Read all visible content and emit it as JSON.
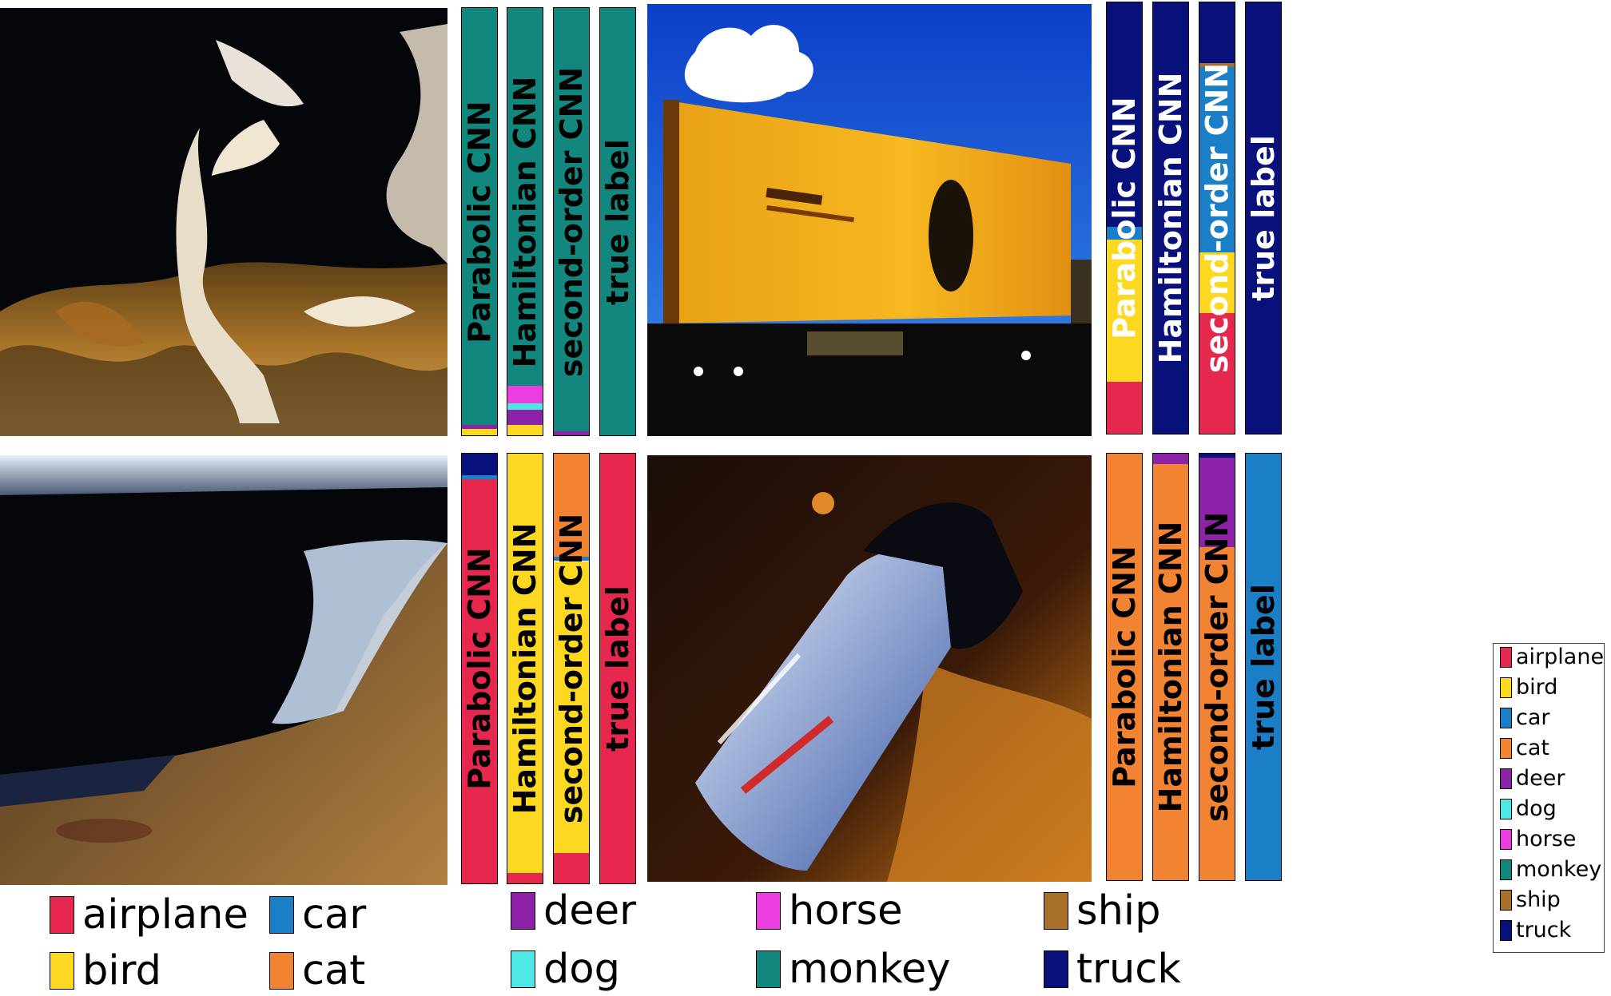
{
  "bar_labels": {
    "parabolic": "Parabolic CNN",
    "hamiltonian": "Hamiltonian CNN",
    "second_order": "second-order CNN",
    "true_label": "true label"
  },
  "classes": [
    {
      "name": "airplane",
      "color": "#e6284f"
    },
    {
      "name": "bird",
      "color": "#fcd920"
    },
    {
      "name": "car",
      "color": "#1a7fc6"
    },
    {
      "name": "cat",
      "color": "#f28332"
    },
    {
      "name": "deer",
      "color": "#8c22a8"
    },
    {
      "name": "dog",
      "color": "#4de8e6"
    },
    {
      "name": "horse",
      "color": "#ec3de0"
    },
    {
      "name": "monkey",
      "color": "#12877d"
    },
    {
      "name": "ship",
      "color": "#a9702c"
    },
    {
      "name": "truck",
      "color": "#07107b"
    }
  ],
  "panels": [
    {
      "image": "monkey-photo",
      "bars": [
        {
          "key": "parabolic",
          "probs": {
            "monkey": 0.975,
            "deer": 0.01,
            "bird": 0.015
          }
        },
        {
          "key": "hamiltonian",
          "probs": {
            "monkey": 0.885,
            "horse": 0.04,
            "dog": 0.015,
            "deer": 0.035,
            "bird": 0.025
          }
        },
        {
          "key": "second_order",
          "probs": {
            "monkey": 0.99,
            "deer": 0.01
          }
        },
        {
          "key": "true_label",
          "probs": {
            "monkey": 1.0
          }
        }
      ]
    },
    {
      "image": "truck-photo",
      "bars": [
        {
          "key": "parabolic",
          "probs": {
            "truck": 0.52,
            "car": 0.03,
            "bird": 0.33,
            "airplane": 0.12
          }
        },
        {
          "key": "hamiltonian",
          "probs": {
            "truck": 1.0
          }
        },
        {
          "key": "second_order",
          "probs": {
            "truck": 0.14,
            "ship": 0.01,
            "car": 0.43,
            "bird": 0.14,
            "airplane": 0.28
          }
        },
        {
          "key": "true_label",
          "probs": {
            "truck": 1.0
          }
        }
      ]
    },
    {
      "image": "airplane-photo",
      "bars": [
        {
          "key": "parabolic",
          "probs": {
            "truck": 0.05,
            "car": 0.01,
            "airplane": 0.94
          }
        },
        {
          "key": "hamiltonian",
          "probs": {
            "bird": 0.975,
            "airplane": 0.025
          }
        },
        {
          "key": "second_order",
          "probs": {
            "cat": 0.24,
            "car": 0.01,
            "bird": 0.68,
            "airplane": 0.07
          }
        },
        {
          "key": "true_label",
          "probs": {
            "airplane": 1.0
          }
        }
      ]
    },
    {
      "image": "car-photo",
      "bars": [
        {
          "key": "parabolic",
          "probs": {
            "cat": 1.0
          }
        },
        {
          "key": "hamiltonian",
          "probs": {
            "deer": 0.025,
            "cat": 0.975
          }
        },
        {
          "key": "second_order",
          "probs": {
            "truck": 0.01,
            "deer": 0.21,
            "cat": 0.78
          }
        },
        {
          "key": "true_label",
          "probs": {
            "car": 1.0
          }
        }
      ]
    }
  ]
}
